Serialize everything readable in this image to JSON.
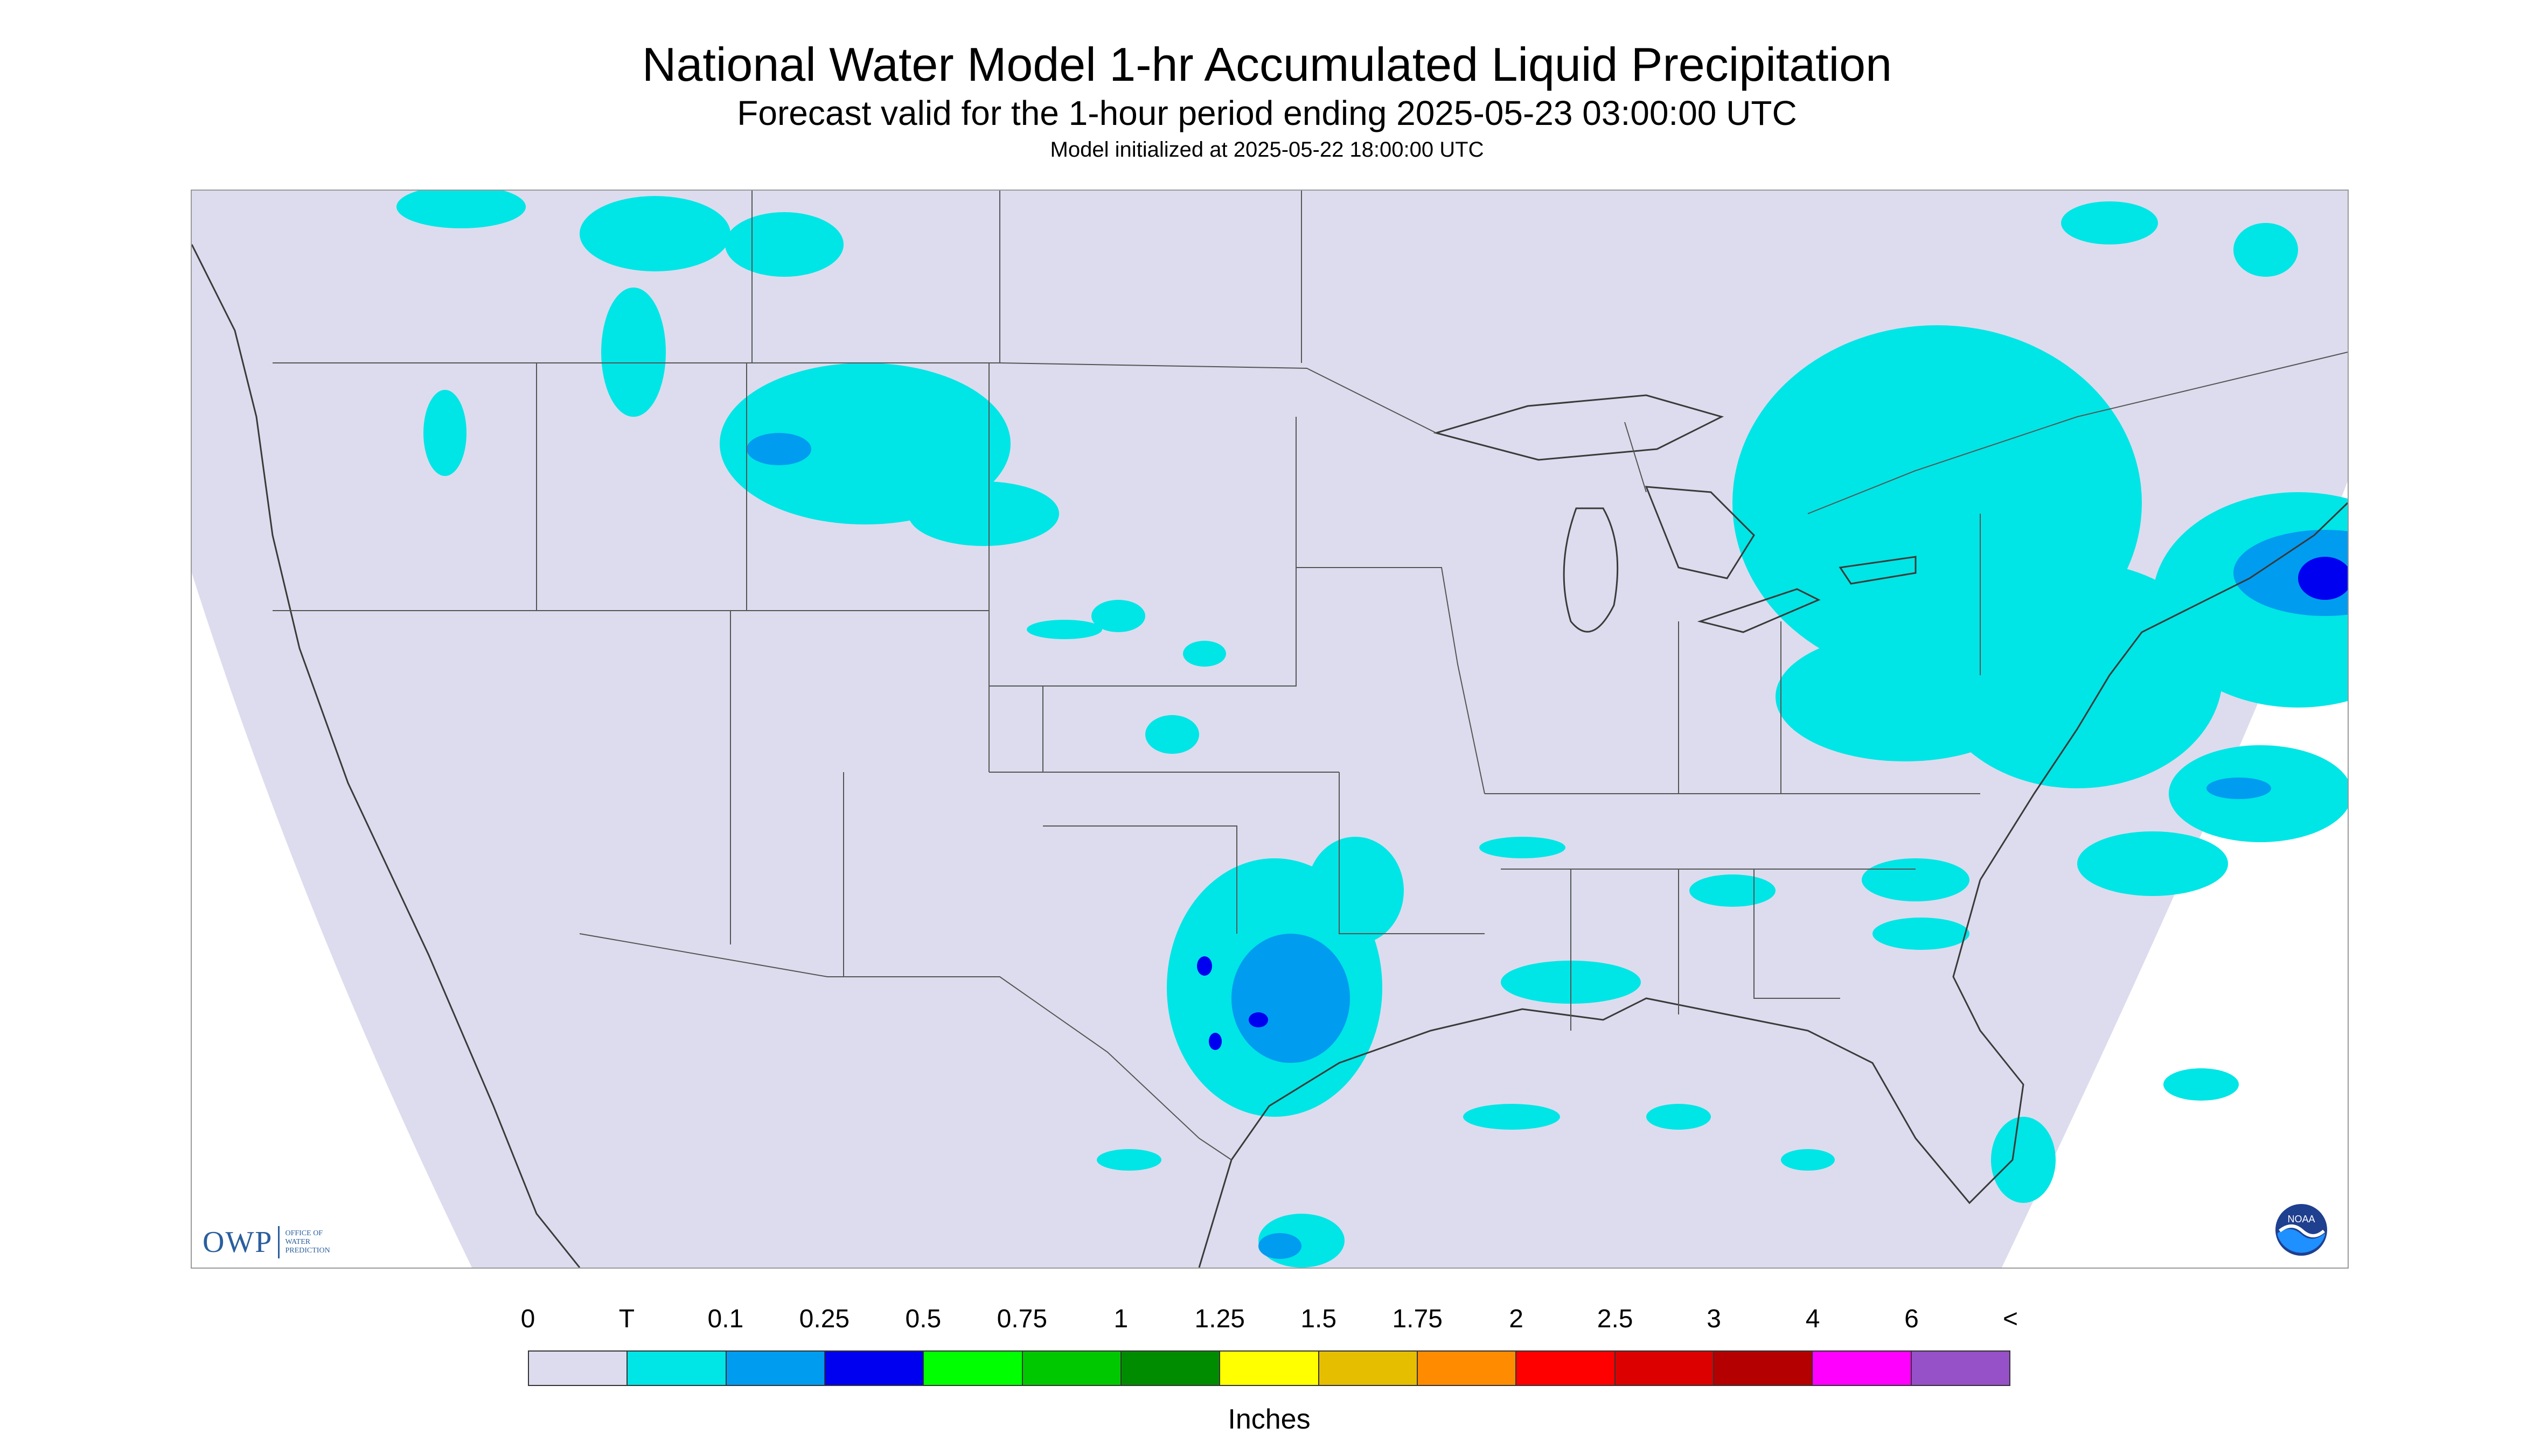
{
  "header": {
    "title": "National Water Model 1-hr Accumulated Liquid Precipitation",
    "subtitle": "Forecast valid for the 1-hour period ending 2025-05-23 03:00:00 UTC",
    "init_line": "Model initialized at 2025-05-22 18:00:00 UTC"
  },
  "map": {
    "background_color": "#dcdcee",
    "outside_color": "#ffffff",
    "boundary_color": "#3a3a3a",
    "precip_colors": {
      "trace": "#00e5e5",
      "light": "#009cf0",
      "moderate": "#0000f0"
    }
  },
  "logos": {
    "owp": {
      "abbrev": "OWP",
      "line1": "OFFICE OF",
      "line2": "WATER",
      "line3": "PREDICTION"
    },
    "noaa": {
      "abbrev": "NOAA"
    }
  },
  "legend": {
    "ticks": [
      "0",
      "T",
      "0.1",
      "0.25",
      "0.5",
      "0.75",
      "1",
      "1.25",
      "1.5",
      "1.75",
      "2",
      "2.5",
      "3",
      "4",
      "6",
      "<"
    ],
    "colors": [
      "#dcdcee",
      "#00e5e5",
      "#009cf0",
      "#0000f0",
      "#00ff00",
      "#00c800",
      "#008c00",
      "#ffff00",
      "#e6be00",
      "#ff8c00",
      "#ff0000",
      "#dc0000",
      "#b40000",
      "#ff00ff",
      "#9650c8"
    ],
    "units": "Inches"
  }
}
